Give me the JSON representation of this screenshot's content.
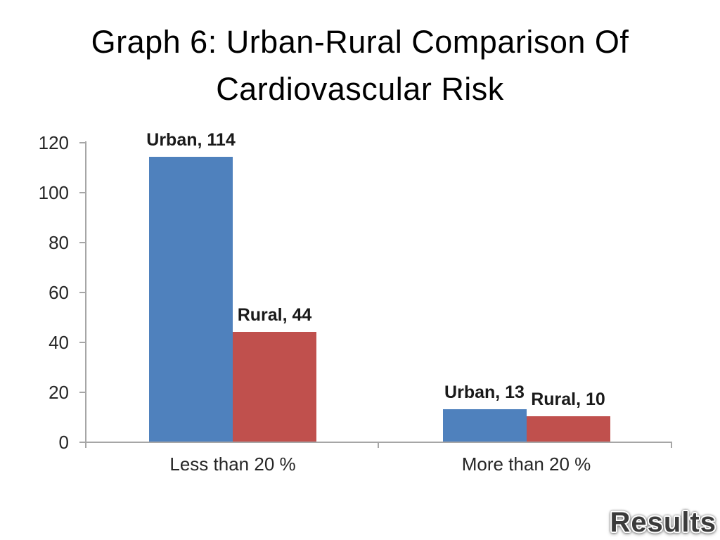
{
  "slide": {
    "title_line1": "Graph 6: Urban-Rural Comparison Of",
    "title_line2": "Cardiovascular Risk",
    "footer_label": "Results"
  },
  "colors": {
    "urban_blue": "#4F81BD",
    "rural_red": "#C0504D",
    "axis_gray": "#A6A6A6",
    "label_text": "#262626"
  },
  "chart_data": {
    "type": "bar",
    "title": "",
    "xlabel": "",
    "ylabel": "",
    "categories": [
      "Less than 20 %",
      "More than 20 %"
    ],
    "series": [
      {
        "name": "Urban",
        "color": "#4F81BD",
        "values": [
          114,
          13
        ]
      },
      {
        "name": "Rural",
        "color": "#C0504D",
        "values": [
          44,
          10
        ]
      }
    ],
    "data_labels": [
      "Urban, 114",
      "Rural, 44",
      "Urban, 13",
      "Rural, 10"
    ],
    "yticks": [
      0,
      20,
      40,
      60,
      80,
      100,
      120
    ],
    "ylim": [
      0,
      120
    ],
    "grid": false,
    "legend_position": "none"
  }
}
